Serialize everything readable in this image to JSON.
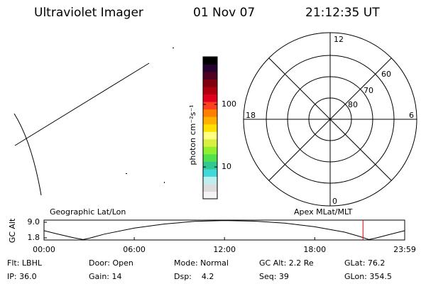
{
  "header": {
    "instrument": "Ultraviolet Imager",
    "date": "01 Nov 07",
    "time": "21:12:35 UT"
  },
  "polar": {
    "mlt_labels": [
      "12",
      "6",
      "18",
      "0"
    ],
    "lat_labels": [
      "60",
      "70",
      "80"
    ]
  },
  "colorbar": {
    "label": "photon cm⁻²s⁻¹",
    "log": true,
    "clim": [
      3.1,
      575
    ],
    "ticks": [
      10,
      100
    ],
    "colors": [
      "#f4f4f4",
      "#dcdcdc",
      "#bfeeee",
      "#40d8d8",
      "#30c890",
      "#50e050",
      "#90f030",
      "#d8f040",
      "#ffff80",
      "#ffe000",
      "#ffb000",
      "#ff8000",
      "#ff4020",
      "#e00020",
      "#b00010",
      "#800010",
      "#500020",
      "#280030",
      "#000000"
    ]
  },
  "alt_plot": {
    "ylabel": "GC Alt",
    "left_title": "Geographic Lat/Lon",
    "right_title": "Apex MLat/MLT",
    "ylim": [
      0.8,
      10
    ],
    "yticks": [
      {
        "value": 9.0,
        "label": "9.0"
      },
      {
        "value": 1.8,
        "label": "1.8"
      }
    ],
    "xlim": [
      0,
      23.983
    ],
    "xticks": [
      {
        "value": 0,
        "label": "00:00"
      },
      {
        "value": 6,
        "label": "06:00"
      },
      {
        "value": 12,
        "label": "12:00"
      },
      {
        "value": 18,
        "label": "18:00"
      },
      {
        "value": 23.983,
        "label": "23:59"
      }
    ],
    "x": [
      0,
      1,
      2,
      2.6,
      3,
      4,
      6,
      8,
      10,
      12,
      14,
      16,
      18,
      20,
      21,
      21.6,
      22,
      23,
      23.983
    ],
    "values": [
      5.1,
      3.4,
      1.8,
      1.0,
      1.6,
      3.5,
      6.3,
      8.2,
      9.4,
      9.8,
      9.5,
      8.6,
      6.9,
      4.4,
      2.4,
      1.0,
      1.6,
      3.4,
      5.1
    ],
    "current_time": 21.21,
    "line_color": "#000000",
    "marker_color": "#e00000"
  },
  "info": [
    [
      "Flt: LBHL",
      "Door: Open",
      "Mode: Normal",
      "GC Alt: 2.2 Re",
      "GLat: 76.2"
    ],
    [
      "IP: 36.0",
      "Gain: 14",
      "Dsp:    4.2",
      "Seq: 39",
      "GLon: 354.5"
    ]
  ]
}
